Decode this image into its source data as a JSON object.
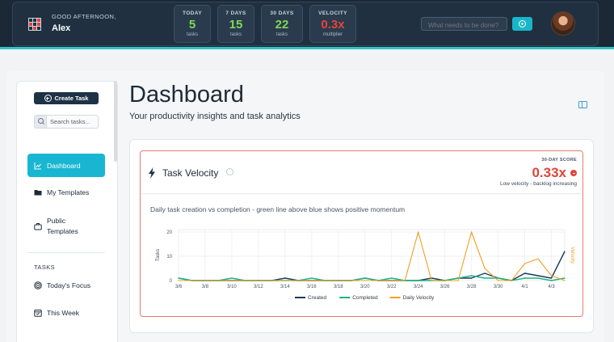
{
  "header": {
    "greeting": "GOOD AFTERNOON,",
    "user_name": "Alex",
    "stats": [
      {
        "label": "TODAY",
        "value": "5",
        "sub": "tasks",
        "color": "#7ed957"
      },
      {
        "label": "7 DAYS",
        "value": "15",
        "sub": "tasks",
        "color": "#7ed957"
      },
      {
        "label": "30 DAYS",
        "value": "22",
        "sub": "tasks",
        "color": "#7ed957"
      },
      {
        "label": "VELOCITY",
        "value": "0.3x",
        "sub": "multiplier",
        "color": "#e8433a"
      }
    ],
    "search_placeholder": "What needs to be done?"
  },
  "sidebar": {
    "create_label": "Create Task",
    "search_placeholder": "Search tasks...",
    "items": [
      {
        "label": "Dashboard",
        "icon": "chart-line-icon",
        "active": true
      },
      {
        "label": "My Templates",
        "icon": "folder-icon",
        "active": false
      },
      {
        "label": "Public Templates",
        "icon": "briefcase-icon",
        "active": false
      }
    ],
    "section_tasks": "TASKS",
    "task_items": [
      {
        "label": "Today's Focus",
        "icon": "target-icon"
      },
      {
        "label": "This Week",
        "icon": "calendar-icon"
      }
    ]
  },
  "main": {
    "title": "Dashboard",
    "subtitle": "Your productivity insights and task analytics"
  },
  "velocity_card": {
    "title": "Task Velocity",
    "score_label": "30-DAY SCORE",
    "score_value": "0.33x",
    "score_note": "Low velocity - backlog increasing",
    "description": "Daily task creation vs completion - green line above blue shows positive momentum"
  },
  "chart_data": {
    "type": "line",
    "x": [
      "3/6",
      "3/7",
      "3/8",
      "3/9",
      "3/10",
      "3/11",
      "3/12",
      "3/13",
      "3/14",
      "3/15",
      "3/16",
      "3/17",
      "3/18",
      "3/19",
      "3/20",
      "3/21",
      "3/22",
      "3/23",
      "3/24",
      "3/25",
      "3/26",
      "3/27",
      "3/28",
      "3/29",
      "3/30",
      "3/31",
      "4/1",
      "4/2",
      "4/3",
      "4/4"
    ],
    "x_ticks": [
      "3/6",
      "3/8",
      "3/10",
      "3/12",
      "3/14",
      "3/16",
      "3/18",
      "3/20",
      "3/22",
      "3/24",
      "3/26",
      "3/28",
      "3/30",
      "4/1",
      "4/3"
    ],
    "y_ticks": [
      0,
      10,
      20
    ],
    "ylim": [
      0,
      21
    ],
    "ylabel": "Tasks",
    "y2label": "Velocity",
    "legend_position": "bottom",
    "series": [
      {
        "name": "Created",
        "color": "#1b3a5c",
        "values": [
          1,
          0,
          0,
          0,
          0,
          0,
          0,
          0,
          1,
          0,
          0,
          0,
          0,
          0,
          1,
          0,
          0,
          0,
          0,
          1,
          0,
          1,
          1,
          3,
          1,
          0,
          3,
          2,
          1,
          12
        ]
      },
      {
        "name": "Completed",
        "color": "#1db37e",
        "values": [
          1,
          0,
          0,
          0,
          1,
          0,
          0,
          0,
          0,
          0,
          1,
          0,
          0,
          0,
          1,
          0,
          1,
          0,
          0,
          0,
          0,
          1,
          2,
          1,
          1,
          0,
          1,
          1,
          0,
          1
        ]
      },
      {
        "name": "Daily Velocity",
        "color": "#f0a020",
        "values": [
          0,
          0,
          0,
          0,
          0,
          0,
          0,
          0,
          0,
          0,
          0,
          0,
          0,
          0,
          0,
          0,
          0,
          0,
          20,
          0,
          0,
          0,
          20,
          5,
          0,
          0,
          7,
          9,
          2,
          0
        ]
      }
    ]
  }
}
